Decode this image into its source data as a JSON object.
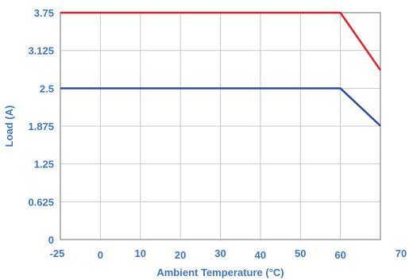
{
  "chart_data": {
    "type": "line",
    "xlabel": "Ambient Temperature (°C)",
    "ylabel": "Load (A)",
    "x_tick_labels": [
      "-25",
      "0",
      "10",
      "20",
      "30",
      "40",
      "50",
      "60",
      "70"
    ],
    "y_tick_labels": [
      "0",
      "0.625",
      "1.25",
      "1.875",
      "2.5",
      "3.125",
      "3.75"
    ],
    "y_ticks": [
      0,
      0.625,
      1.25,
      1.875,
      2.5,
      3.125,
      3.75
    ],
    "ylim": [
      0,
      3.75
    ],
    "x_category_count": 8,
    "grid": true,
    "series": [
      {
        "color": "#e3202a",
        "points": [
          [
            0,
            3.75
          ],
          [
            7,
            3.75
          ],
          [
            8,
            2.8
          ]
        ]
      },
      {
        "color": "#2b4aa0",
        "points": [
          [
            0,
            2.5
          ],
          [
            7,
            2.5
          ],
          [
            8,
            1.88
          ]
        ]
      }
    ]
  },
  "colors": {
    "label": "#3d74c4",
    "grid": "#c8c8c8",
    "frame": "#a0a0a0"
  }
}
